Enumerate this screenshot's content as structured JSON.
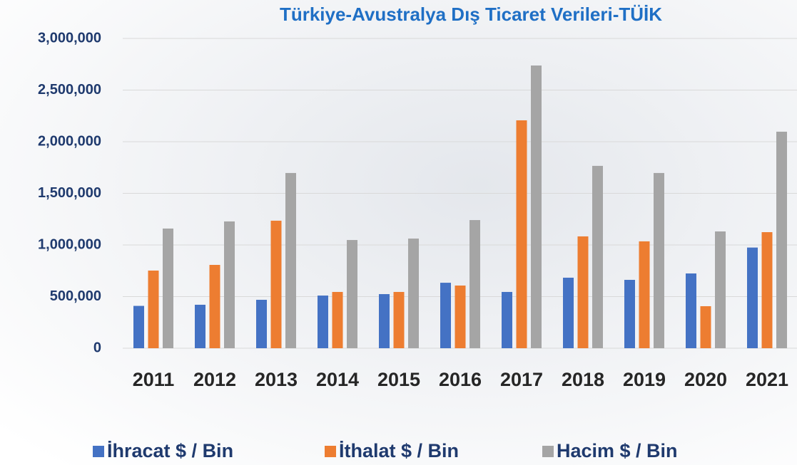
{
  "chart_data": {
    "type": "bar",
    "title": "Türkiye-Avustralya Dış Ticaret Verileri-TÜİK",
    "categories": [
      "2011",
      "2012",
      "2013",
      "2014",
      "2015",
      "2016",
      "2017",
      "2018",
      "2019",
      "2020",
      "2021"
    ],
    "series": [
      {
        "name": "İhracat $ / Bin",
        "color": "#4472c4",
        "values": [
          410000,
          421000,
          469000,
          510000,
          524000,
          634000,
          545000,
          683000,
          662000,
          724000,
          975000
        ]
      },
      {
        "name": "İthalat $ / Bin",
        "color": "#ed7d31",
        "values": [
          752000,
          807000,
          1235000,
          545000,
          545000,
          607000,
          2207000,
          1083000,
          1035000,
          407000,
          1124000
        ]
      },
      {
        "name": "Hacim $ / Bin",
        "color": "#a5a5a5",
        "values": [
          1159000,
          1228000,
          1697000,
          1048000,
          1062000,
          1241000,
          2738000,
          1766000,
          1697000,
          1131000,
          2097000
        ]
      }
    ],
    "ylim": [
      0,
      3000000
    ],
    "yticks": [
      0,
      {
        "value": 500000,
        "label": "500,000"
      },
      {
        "value": 1000000,
        "label": "1,000,000"
      },
      {
        "value": 1500000,
        "label": "1,500,000"
      },
      {
        "value": 2000000,
        "label": "2,000,000"
      },
      {
        "value": 2500000,
        "label": "2,500,000"
      },
      {
        "value": 3000000,
        "label": "3,000,000"
      }
    ],
    "grid": true
  }
}
